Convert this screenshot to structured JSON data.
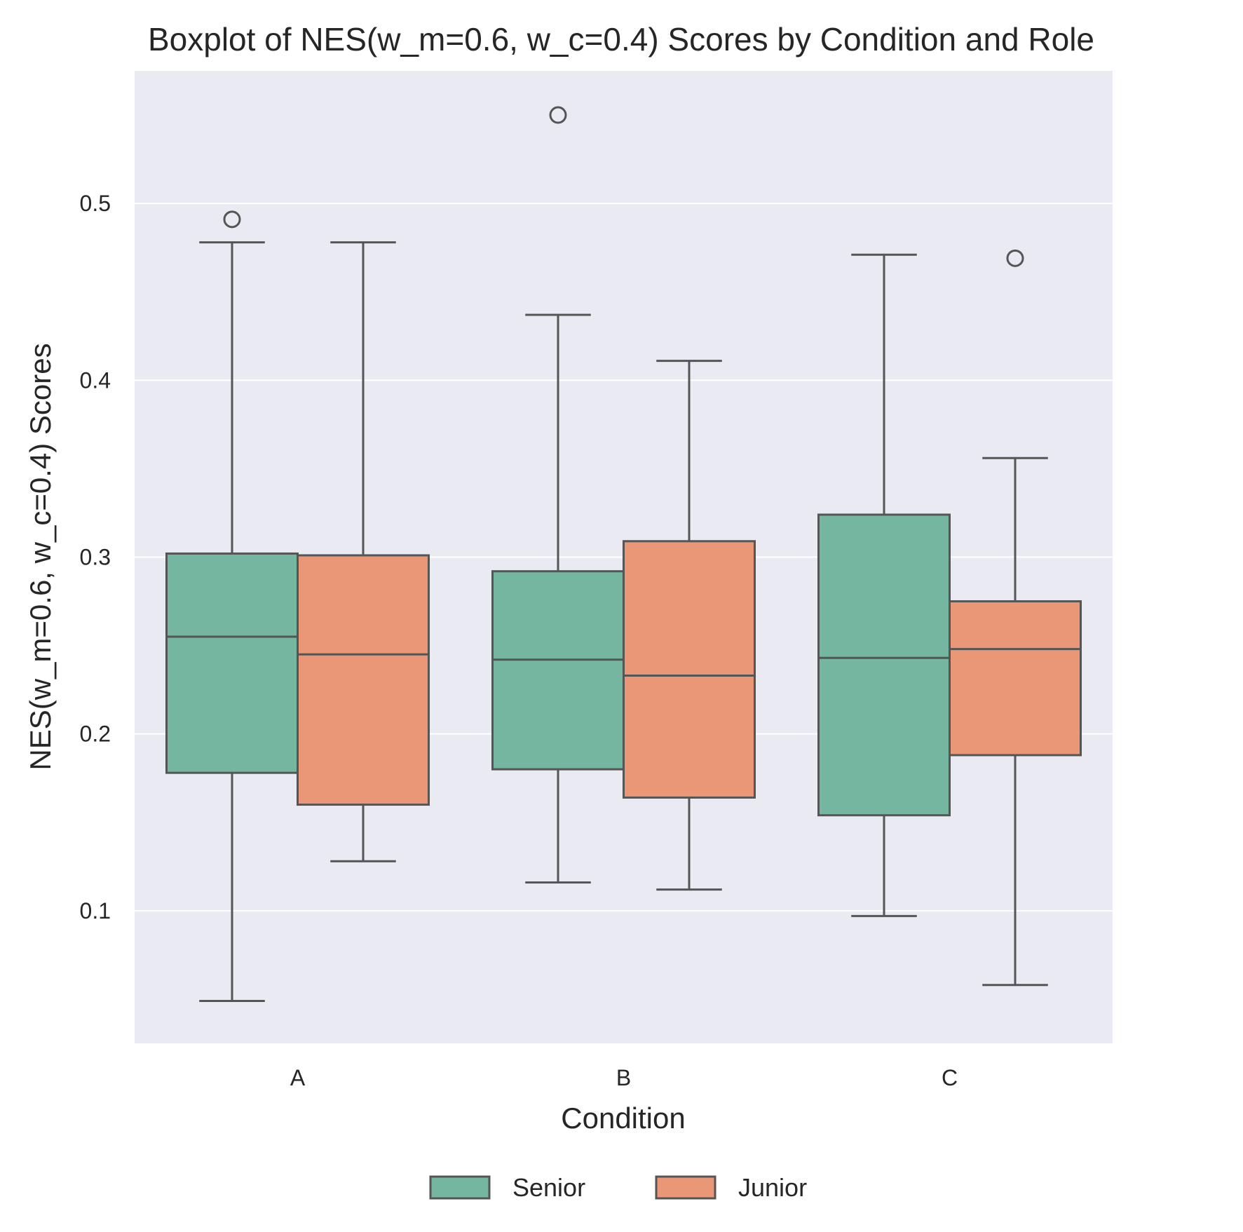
{
  "chart_data": {
    "type": "box",
    "title": "Boxplot of NES(w_m=0.6, w_c=0.4) Scores by Condition and Role",
    "xlabel": "Condition",
    "ylabel": "NES(w_m=0.6, w_c=0.4) Scores",
    "categories": [
      "A",
      "B",
      "C"
    ],
    "ylim": [
      0.025,
      0.575
    ],
    "yticks": [
      0.1,
      0.2,
      0.3,
      0.4,
      0.5
    ],
    "ytick_labels": [
      "0.1",
      "0.2",
      "0.3",
      "0.4",
      "0.5"
    ],
    "grid": true,
    "legend_position": "bottom-center",
    "background_color": "#eaeaf2",
    "edge_color": "#555555",
    "series": [
      {
        "name": "Senior",
        "color": "#74b6a0",
        "boxes": [
          {
            "category": "A",
            "whisker_low": 0.049,
            "q1": 0.178,
            "median": 0.255,
            "q3": 0.302,
            "whisker_high": 0.478,
            "outliers": [
              0.491
            ]
          },
          {
            "category": "B",
            "whisker_low": 0.116,
            "q1": 0.18,
            "median": 0.242,
            "q3": 0.292,
            "whisker_high": 0.437,
            "outliers": [
              0.55
            ]
          },
          {
            "category": "C",
            "whisker_low": 0.097,
            "q1": 0.154,
            "median": 0.243,
            "q3": 0.324,
            "whisker_high": 0.471,
            "outliers": []
          }
        ]
      },
      {
        "name": "Junior",
        "color": "#e99776",
        "boxes": [
          {
            "category": "A",
            "whisker_low": 0.128,
            "q1": 0.16,
            "median": 0.245,
            "q3": 0.301,
            "whisker_high": 0.478,
            "outliers": []
          },
          {
            "category": "B",
            "whisker_low": 0.112,
            "q1": 0.164,
            "median": 0.233,
            "q3": 0.309,
            "whisker_high": 0.411,
            "outliers": []
          },
          {
            "category": "C",
            "whisker_low": 0.058,
            "q1": 0.188,
            "median": 0.248,
            "q3": 0.275,
            "whisker_high": 0.356,
            "outliers": [
              0.469
            ]
          }
        ]
      }
    ]
  }
}
